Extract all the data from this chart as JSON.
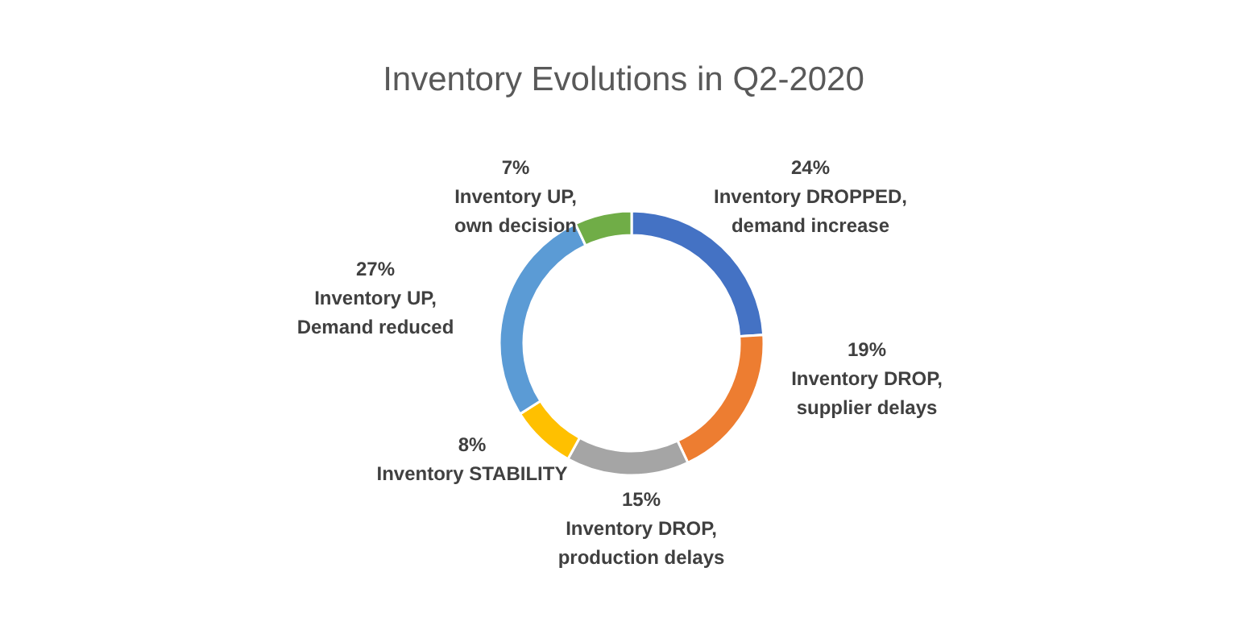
{
  "chart_data": {
    "type": "donut",
    "title": "Inventory Evolutions in Q2-2020",
    "categories": [
      "Inventory DROPPED, demand increase",
      "Inventory DROP, supplier delays",
      "Inventory DROP, production delays",
      "Inventory STABILITY",
      "Inventory UP, Demand reduced",
      "Inventory UP, own decision"
    ],
    "values": [
      24,
      19,
      15,
      8,
      27,
      7
    ],
    "colors": [
      "#4472c4",
      "#ed7d31",
      "#a5a5a5",
      "#ffc000",
      "#5b9bd5",
      "#70ad47"
    ],
    "value_labels": [
      "24%",
      "19%",
      "15%",
      "8%",
      "27%",
      "7%"
    ],
    "legend": false
  }
}
